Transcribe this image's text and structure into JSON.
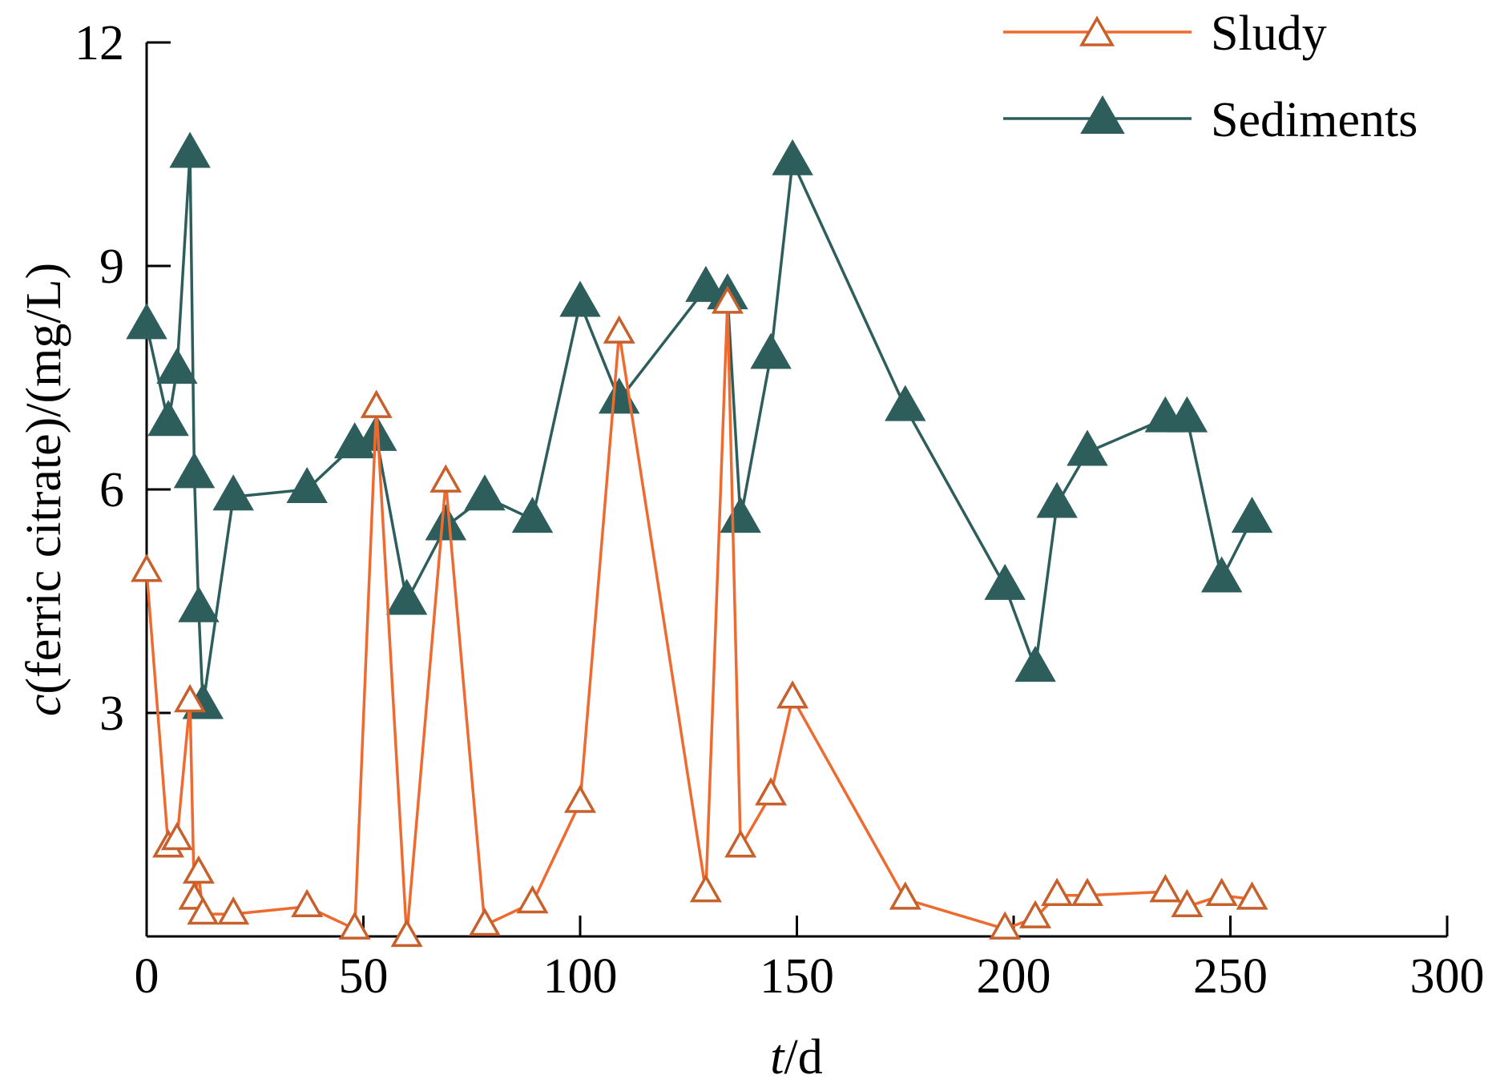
{
  "chart_data": {
    "type": "line",
    "xlabel_italic": "t",
    "xlabel_rest": "/d",
    "ylabel_italic": "c",
    "ylabel_rest": "(ferric citrate)/(mg/L)",
    "xlim": [
      0,
      300
    ],
    "ylim": [
      0,
      12
    ],
    "x_ticks": [
      0,
      50,
      100,
      150,
      200,
      250,
      300
    ],
    "y_ticks": [
      3,
      6,
      9,
      12
    ],
    "x_tick_labels": [
      "0",
      "50",
      "100",
      "150",
      "200",
      "250",
      "300"
    ],
    "y_tick_labels": [
      "3",
      "6",
      "9",
      "12"
    ],
    "grid": false,
    "legend_position": "top-right",
    "series": [
      {
        "name": "Sludy",
        "color": "#ee6a2f",
        "marker": "open-triangle",
        "x": [
          0,
          5,
          7,
          10,
          11,
          12,
          13,
          20,
          37,
          48,
          53,
          60,
          69,
          78,
          89,
          100,
          109,
          129,
          134,
          137,
          144,
          149,
          175,
          198,
          205,
          210,
          217,
          235,
          240,
          248,
          255
        ],
        "y": [
          4.9,
          1.2,
          1.3,
          3.15,
          0.5,
          0.85,
          0.3,
          0.3,
          0.4,
          0.1,
          7.1,
          0.0,
          6.1,
          0.15,
          0.45,
          1.8,
          8.1,
          0.6,
          8.5,
          1.2,
          1.9,
          3.2,
          0.5,
          0.1,
          0.25,
          0.55,
          0.55,
          0.6,
          0.4,
          0.55,
          0.5
        ]
      },
      {
        "name": "Sediments",
        "color": "#2e5e5c",
        "marker": "filled-triangle",
        "x": [
          0,
          5,
          7,
          10,
          11,
          12,
          13,
          20,
          37,
          48,
          53,
          60,
          69,
          78,
          89,
          100,
          109,
          129,
          134,
          137,
          144,
          149,
          175,
          198,
          205,
          210,
          217,
          235,
          240,
          248,
          255
        ],
        "y": [
          8.2,
          6.9,
          7.6,
          10.5,
          6.2,
          4.4,
          3.1,
          5.9,
          6.0,
          6.6,
          6.7,
          4.5,
          5.5,
          5.9,
          5.6,
          8.5,
          7.2,
          8.7,
          8.6,
          5.6,
          7.8,
          10.4,
          7.1,
          4.7,
          3.6,
          5.8,
          6.5,
          6.95,
          6.95,
          4.8,
          5.6
        ]
      }
    ]
  }
}
